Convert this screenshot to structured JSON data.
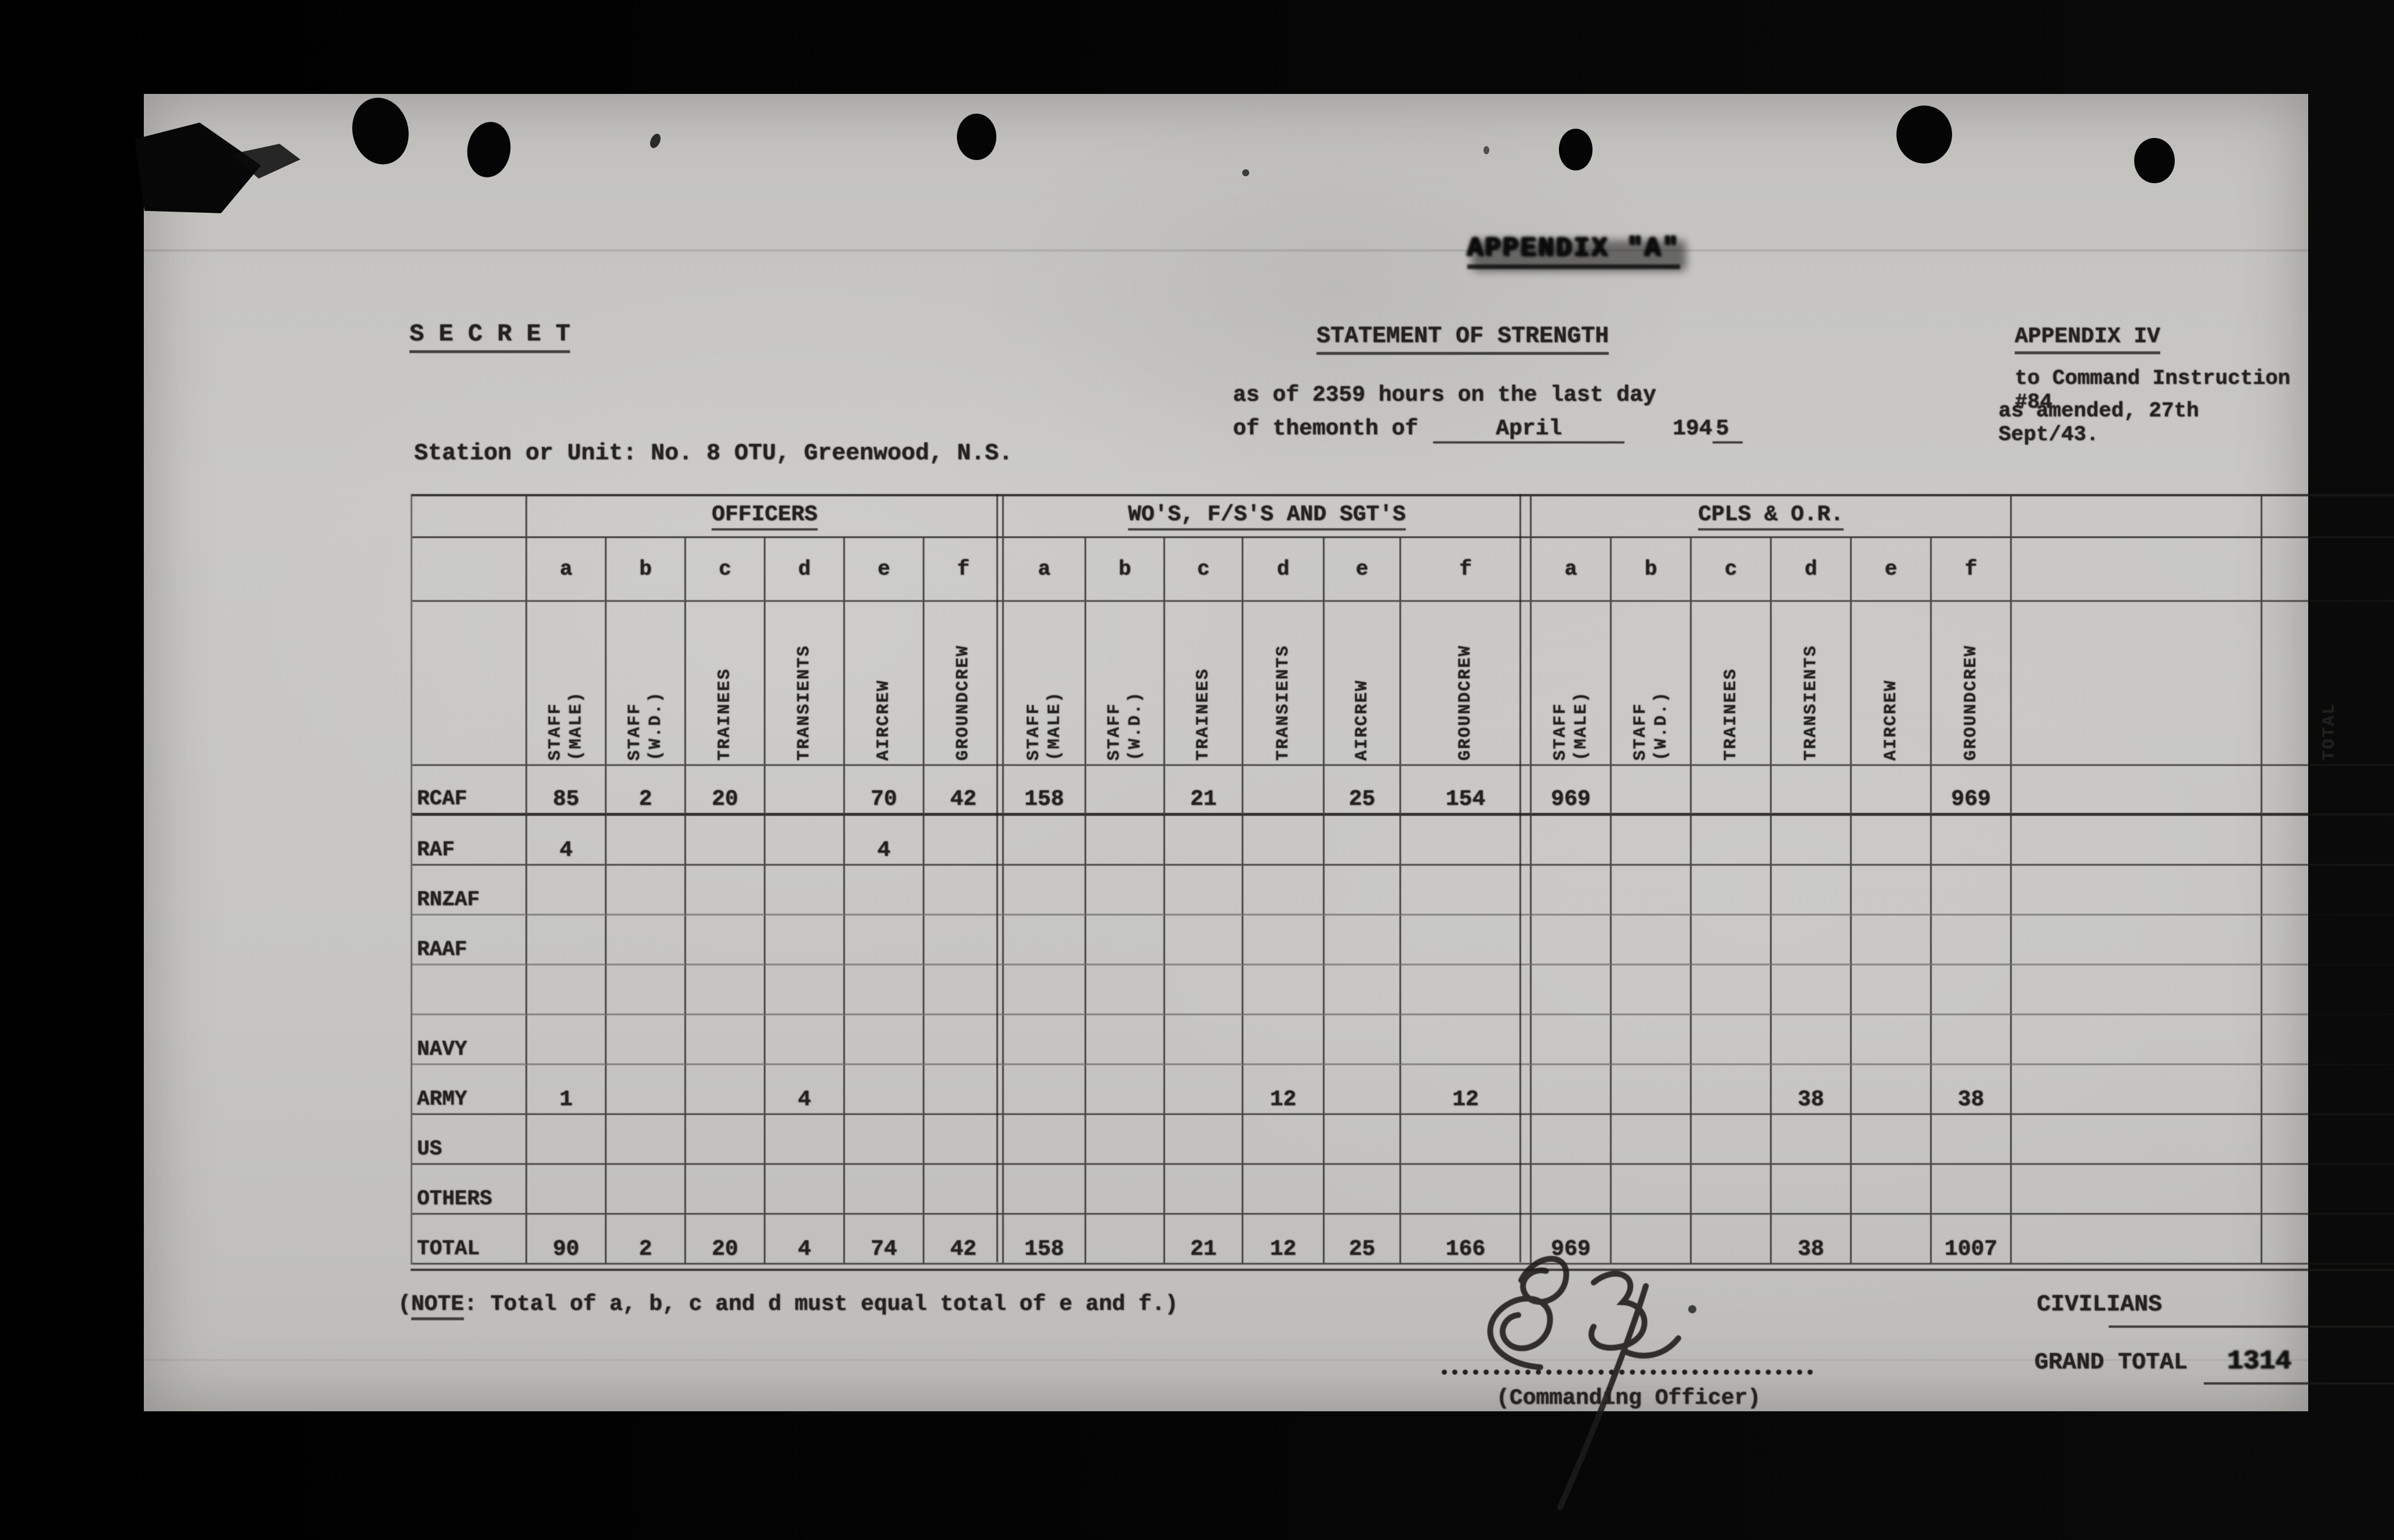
{
  "stamp": "APPENDIX \"A\"",
  "classification": "S E C R E T",
  "doc": {
    "title": "STATEMENT OF STRENGTH",
    "asof_line1": "as of 2359 hours on the last day",
    "asof_line2_prefix": "of themonth of",
    "asof_month": "April",
    "asof_year_prefix": "194",
    "asof_year_digit": "5",
    "appendix_line1": "APPENDIX IV",
    "appendix_line2": "to Command Instruction #84",
    "appendix_line3": "as amended, 27th Sept/43.",
    "station_line": "Station or Unit: No. 8 OTU, Greenwood, N.S."
  },
  "table": {
    "sections": [
      "OFFICERS",
      "WO'S, F/S'S AND SGT'S",
      "CPLS & O.R."
    ],
    "column_letters": [
      "a",
      "b",
      "c",
      "d",
      "e",
      "f"
    ],
    "column_headers": [
      "STAFF\n(MALE)",
      "STAFF\n(W.D.)",
      "TRAINEES",
      "TRANSIENTS",
      "AIRCREW",
      "GROUNDCREW"
    ],
    "total_header": "TOTAL",
    "rows": [
      {
        "label": "RCAF",
        "officers": [
          "85",
          "2",
          "20",
          "",
          "70",
          "42"
        ],
        "wos": [
          "158",
          "",
          "21",
          "",
          "25",
          "154"
        ],
        "cpls": [
          "969",
          "",
          "",
          "",
          "",
          "969"
        ],
        "total": ""
      },
      {
        "label": "RAF",
        "officers": [
          "4",
          "",
          "",
          "",
          "4",
          ""
        ],
        "wos": [
          "",
          "",
          "",
          "",
          "",
          ""
        ],
        "cpls": [
          "",
          "",
          "",
          "",
          "",
          ""
        ],
        "total": ""
      },
      {
        "label": "RNZAF",
        "officers": [
          "",
          "",
          "",
          "",
          "",
          ""
        ],
        "wos": [
          "",
          "",
          "",
          "",
          "",
          ""
        ],
        "cpls": [
          "",
          "",
          "",
          "",
          "",
          ""
        ],
        "total": ""
      },
      {
        "label": "RAAF",
        "officers": [
          "",
          "",
          "",
          "",
          "",
          ""
        ],
        "wos": [
          "",
          "",
          "",
          "",
          "",
          ""
        ],
        "cpls": [
          "",
          "",
          "",
          "",
          "",
          ""
        ],
        "total": ""
      },
      {
        "label": "",
        "officers": [
          "",
          "",
          "",
          "",
          "",
          ""
        ],
        "wos": [
          "",
          "",
          "",
          "",
          "",
          ""
        ],
        "cpls": [
          "",
          "",
          "",
          "",
          "",
          ""
        ],
        "total": ""
      },
      {
        "label": "NAVY",
        "officers": [
          "",
          "",
          "",
          "",
          "",
          ""
        ],
        "wos": [
          "",
          "",
          "",
          "",
          "",
          ""
        ],
        "cpls": [
          "",
          "",
          "",
          "",
          "",
          ""
        ],
        "total": ""
      },
      {
        "label": "ARMY",
        "officers": [
          "1",
          "",
          "",
          "4",
          "",
          ""
        ],
        "wos": [
          "",
          "",
          "",
          "12",
          "",
          "12"
        ],
        "cpls": [
          "",
          "",
          "",
          "38",
          "",
          "38"
        ],
        "total": ""
      },
      {
        "label": "US",
        "officers": [
          "",
          "",
          "",
          "",
          "",
          ""
        ],
        "wos": [
          "",
          "",
          "",
          "",
          "",
          ""
        ],
        "cpls": [
          "",
          "",
          "",
          "",
          "",
          ""
        ],
        "total": ""
      },
      {
        "label": "OTHERS",
        "officers": [
          "",
          "",
          "",
          "",
          "",
          ""
        ],
        "wos": [
          "",
          "",
          "",
          "",
          "",
          ""
        ],
        "cpls": [
          "",
          "",
          "",
          "",
          "",
          ""
        ],
        "total": ""
      },
      {
        "label": "TOTAL",
        "officers": [
          "90",
          "2",
          "20",
          "4",
          "74",
          "42"
        ],
        "wos": [
          "158",
          "",
          "21",
          "12",
          "25",
          "166"
        ],
        "cpls": [
          "969",
          "",
          "",
          "38",
          "",
          "1007"
        ],
        "total": ""
      }
    ]
  },
  "footer": {
    "note_open": "(",
    "note_word": "NOTE",
    "note_rest": ": Total of a, b, c and d must equal total of e and f.)",
    "signature_caption": "(Commanding Officer)",
    "civilians_label": "CIVILIANS",
    "civilians_value": "",
    "grand_total_label": "GRAND TOTAL",
    "grand_total_value": "1314"
  }
}
